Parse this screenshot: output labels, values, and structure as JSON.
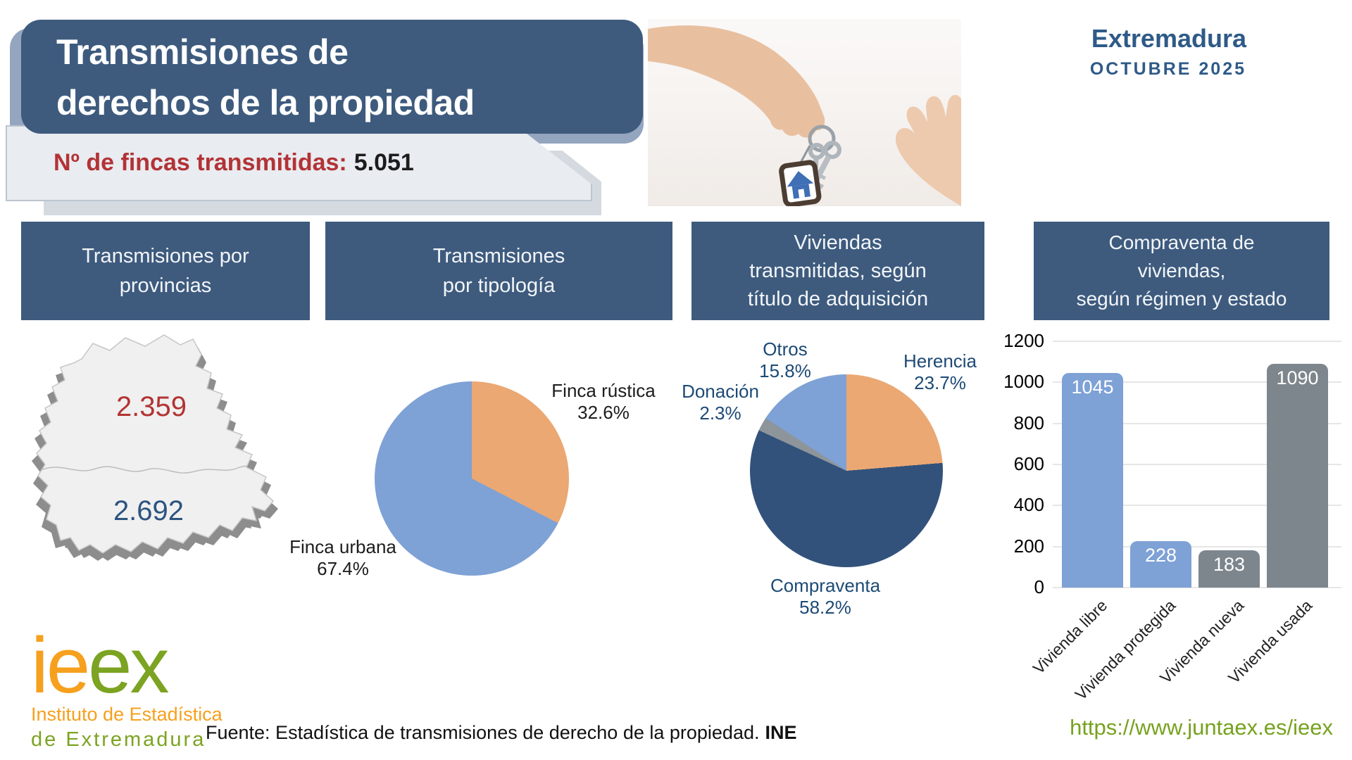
{
  "header": {
    "title_line1": "Transmisiones de",
    "title_line2": "derechos de la propiedad",
    "subtitle_label": "Nº de fincas transmitidas:",
    "subtitle_value": "5.051",
    "region": "Extremadura",
    "period": "OCTUBRE 2025"
  },
  "sections": [
    {
      "lines": [
        "Transmisiones por",
        "provincias"
      ]
    },
    {
      "lines": [
        "Transmisiones",
        "por tipología"
      ]
    },
    {
      "lines": [
        "Viviendas",
        "transmitidas, según",
        "título de adquisición"
      ]
    },
    {
      "lines": [
        "Compraventa de",
        "viviendas,",
        "según régimen y estado"
      ]
    }
  ],
  "map": {
    "province_top_value": "2.359",
    "province_bottom_value": "2.692"
  },
  "chart_data": [
    {
      "type": "map",
      "title": "Transmisiones por provincias",
      "region": "Extremadura",
      "values": {
        "Cáceres": 2359,
        "Badajoz": 2692
      },
      "value_colors": {
        "Cáceres": "#b23433",
        "Badajoz": "#2c5380"
      }
    },
    {
      "type": "pie",
      "title": "Transmisiones por tipología",
      "direction": "clockwise-from-top",
      "segments": [
        {
          "label": "Finca rústica",
          "pct": 32.6,
          "pct_label": "32.6%",
          "color": "#eba873"
        },
        {
          "label": "Finca urbana",
          "pct": 67.4,
          "pct_label": "67.4%",
          "color": "#7ea1d6"
        }
      ]
    },
    {
      "type": "pie",
      "title": "Viviendas transmitidas, según título de adquisición",
      "direction": "clockwise-from-top",
      "segments": [
        {
          "label": "Herencia",
          "pct": 23.7,
          "pct_label": "23.7%",
          "color": "#eba873"
        },
        {
          "label": "Compraventa",
          "pct": 58.2,
          "pct_label": "58.2%",
          "color": "#32527b"
        },
        {
          "label": "Donación",
          "pct": 2.3,
          "pct_label": "2.3%",
          "color": "#8d959b"
        },
        {
          "label": "Otros",
          "pct": 15.8,
          "pct_label": "15.8%",
          "color": "#7ea1d6"
        }
      ]
    },
    {
      "type": "bar",
      "title": "Compraventa de viviendas, según régimen y estado",
      "categories": [
        "Vivienda libre",
        "Vivienda protegida",
        "Vivienda nueva",
        "Vivienda usada"
      ],
      "values": [
        1045,
        228,
        183,
        1090
      ],
      "colors": [
        "#7ea1d6",
        "#7ea1d6",
        "#7d868d",
        "#7d868d"
      ],
      "ylim": [
        0,
        1200
      ],
      "yticks": [
        0,
        200,
        400,
        600,
        800,
        1000,
        1200
      ],
      "grid": true,
      "legend": "none"
    }
  ],
  "footer": {
    "logo": {
      "word_part1": "ie",
      "word_part2": "ex",
      "line1": "Instituto de Estadística",
      "line2": "de Extremadura"
    },
    "source_prefix": "Fuente: Estadística de transmisiones de derecho de la propiedad.",
    "source_bold": "INE",
    "url": "https://www.juntaex.es/ieex"
  },
  "colors": {
    "header_navy": "#3e5b7e",
    "accent_red": "#b23336",
    "pie_blue": "#7ea1d6",
    "pie_orange": "#eba873",
    "pie_navy": "#32527b",
    "pie_gray": "#8d959b",
    "bar_gray": "#7d868d",
    "url_green": "#76a21e",
    "logo_orange": "#f6a01e",
    "logo_green": "#7ca321"
  }
}
